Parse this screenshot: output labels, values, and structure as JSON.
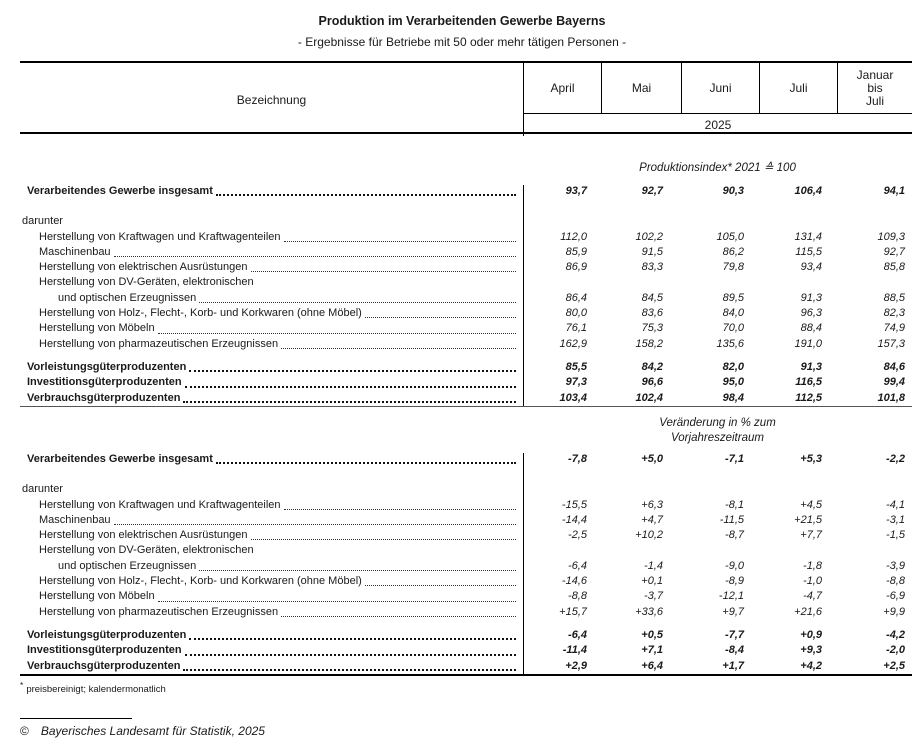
{
  "title": "Produktion im Verarbeitenden Gewerbe Bayerns",
  "subtitle": "- Ergebnisse für Betriebe mit 50 oder mehr tätigen Personen -",
  "table": {
    "label_header": "Bezeichnung",
    "month_headers": [
      "April",
      "Mai",
      "Juni",
      "Juli",
      "Januar\nbis\nJuli"
    ],
    "year": "2025",
    "sections": [
      {
        "header": "Produktionsindex* 2021 ≙ 100",
        "rows": [
          {
            "type": "data",
            "label": "Verarbeitendes Gewerbe insgesamt",
            "bold": true,
            "indent": 0,
            "leaders": true,
            "values": [
              "93,7",
              "92,7",
              "90,3",
              "106,4",
              "94,1"
            ]
          },
          {
            "type": "spacer",
            "h": 15
          },
          {
            "type": "data",
            "label": "darunter",
            "bold": false,
            "indent": 0,
            "leaders": false,
            "values": null
          },
          {
            "type": "data",
            "label": "Herstellung von Kraftwagen und Kraftwagenteilen",
            "bold": false,
            "indent": 1,
            "leaders": true,
            "values": [
              "112,0",
              "102,2",
              "105,0",
              "131,4",
              "109,3"
            ]
          },
          {
            "type": "data",
            "label": "Maschinenbau",
            "bold": false,
            "indent": 1,
            "leaders": true,
            "values": [
              "85,9",
              "91,5",
              "86,2",
              "115,5",
              "92,7"
            ]
          },
          {
            "type": "data",
            "label": "Herstellung von elektrischen Ausrüstungen",
            "bold": false,
            "indent": 1,
            "leaders": true,
            "values": [
              "86,9",
              "83,3",
              "79,8",
              "93,4",
              "85,8"
            ]
          },
          {
            "type": "data",
            "label": "Herstellung von DV-Geräten, elektronischen",
            "bold": false,
            "indent": 1,
            "leaders": false,
            "values": null
          },
          {
            "type": "data",
            "label": "und optischen Erzeugnissen",
            "bold": false,
            "indent": 2,
            "leaders": true,
            "values": [
              "86,4",
              "84,5",
              "89,5",
              "91,3",
              "88,5"
            ]
          },
          {
            "type": "data",
            "label": "Herstellung von Holz-, Flecht-, Korb- und Korkwaren (ohne Möbel)",
            "bold": false,
            "indent": 1,
            "leaders": true,
            "values": [
              "80,0",
              "83,6",
              "84,0",
              "96,3",
              "82,3"
            ]
          },
          {
            "type": "data",
            "label": "Herstellung von Möbeln",
            "bold": false,
            "indent": 1,
            "leaders": true,
            "values": [
              "76,1",
              "75,3",
              "70,0",
              "88,4",
              "74,9"
            ]
          },
          {
            "type": "data",
            "label": "Herstellung von pharmazeutischen Erzeugnissen",
            "bold": false,
            "indent": 1,
            "leaders": true,
            "values": [
              "162,9",
              "158,2",
              "135,6",
              "191,0",
              "157,3"
            ]
          },
          {
            "type": "spacer",
            "h": 8
          },
          {
            "type": "data",
            "label": "Vorleistungsgüterproduzenten",
            "bold": true,
            "indent": 0,
            "leaders": true,
            "values": [
              "85,5",
              "84,2",
              "82,0",
              "91,3",
              "84,6"
            ]
          },
          {
            "type": "data",
            "label": "Investitionsgüterproduzenten",
            "bold": true,
            "indent": 0,
            "leaders": true,
            "values": [
              "97,3",
              "96,6",
              "95,0",
              "116,5",
              "99,4"
            ]
          },
          {
            "type": "data",
            "label": "Verbrauchsgüterproduzenten",
            "bold": true,
            "indent": 0,
            "leaders": true,
            "values": [
              "103,4",
              "102,4",
              "98,4",
              "112,5",
              "101,8"
            ]
          }
        ]
      },
      {
        "header": "Veränderung in % zum\nVorjahreszeitraum",
        "rows": [
          {
            "type": "data",
            "label": "Verarbeitendes Gewerbe insgesamt",
            "bold": true,
            "indent": 0,
            "leaders": true,
            "values": [
              "-7,8",
              "+5,0",
              "-7,1",
              "+5,3",
              "-2,2"
            ]
          },
          {
            "type": "spacer",
            "h": 15
          },
          {
            "type": "data",
            "label": "darunter",
            "bold": false,
            "indent": 0,
            "leaders": false,
            "values": null
          },
          {
            "type": "data",
            "label": "Herstellung von Kraftwagen und Kraftwagenteilen",
            "bold": false,
            "indent": 1,
            "leaders": true,
            "values": [
              "-15,5",
              "+6,3",
              "-8,1",
              "+4,5",
              "-4,1"
            ]
          },
          {
            "type": "data",
            "label": "Maschinenbau",
            "bold": false,
            "indent": 1,
            "leaders": true,
            "values": [
              "-14,4",
              "+4,7",
              "-11,5",
              "+21,5",
              "-3,1"
            ]
          },
          {
            "type": "data",
            "label": "Herstellung von elektrischen Ausrüstungen",
            "bold": false,
            "indent": 1,
            "leaders": true,
            "values": [
              "-2,5",
              "+10,2",
              "-8,7",
              "+7,7",
              "-1,5"
            ]
          },
          {
            "type": "data",
            "label": "Herstellung von DV-Geräten, elektronischen",
            "bold": false,
            "indent": 1,
            "leaders": false,
            "values": null
          },
          {
            "type": "data",
            "label": "und optischen Erzeugnissen",
            "bold": false,
            "indent": 2,
            "leaders": true,
            "values": [
              "-6,4",
              "-1,4",
              "-9,0",
              "-1,8",
              "-3,9"
            ]
          },
          {
            "type": "data",
            "label": "Herstellung von Holz-, Flecht-, Korb- und Korkwaren (ohne Möbel)",
            "bold": false,
            "indent": 1,
            "leaders": true,
            "values": [
              "-14,6",
              "+0,1",
              "-8,9",
              "-1,0",
              "-8,8"
            ]
          },
          {
            "type": "data",
            "label": "Herstellung von Möbeln",
            "bold": false,
            "indent": 1,
            "leaders": true,
            "values": [
              "-8,8",
              "-3,7",
              "-12,1",
              "-4,7",
              "-6,9"
            ]
          },
          {
            "type": "data",
            "label": "Herstellung von pharmazeutischen Erzeugnissen",
            "bold": false,
            "indent": 1,
            "leaders": true,
            "values": [
              "+15,7",
              "+33,6",
              "+9,7",
              "+21,6",
              "+9,9"
            ]
          },
          {
            "type": "spacer",
            "h": 8
          },
          {
            "type": "data",
            "label": "Vorleistungsgüterproduzenten",
            "bold": true,
            "indent": 0,
            "leaders": true,
            "values": [
              "-6,4",
              "+0,5",
              "-7,7",
              "+0,9",
              "-4,2"
            ]
          },
          {
            "type": "data",
            "label": "Investitionsgüterproduzenten",
            "bold": true,
            "indent": 0,
            "leaders": true,
            "values": [
              "-11,4",
              "+7,1",
              "-8,4",
              "+9,3",
              "-2,0"
            ]
          },
          {
            "type": "data",
            "label": "Verbrauchsgüterproduzenten",
            "bold": true,
            "indent": 0,
            "leaders": true,
            "values": [
              "+2,9",
              "+6,4",
              "+1,7",
              "+4,2",
              "+2,5"
            ]
          }
        ]
      }
    ]
  },
  "footnote": {
    "marker": "*",
    "text": "preisbereinigt; kalendermonatlich"
  },
  "copyright": {
    "symbol": "©",
    "text": "Bayerisches Landesamt für Statistik, 2025"
  }
}
